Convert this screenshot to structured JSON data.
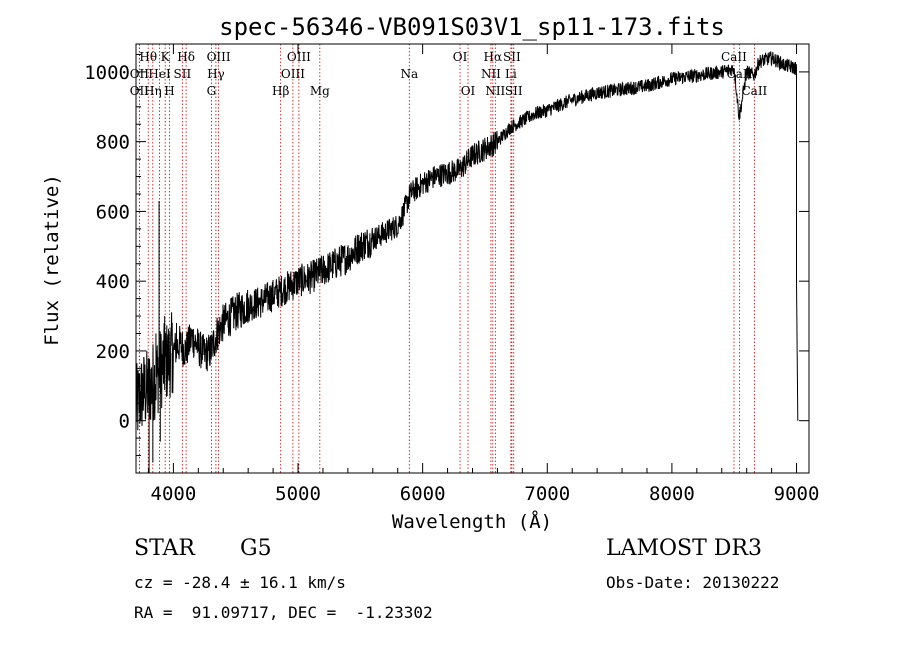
{
  "chart_data": {
    "type": "line",
    "title": "spec-56346-VB091S03V1_sp11-173.fits",
    "xlabel": "Wavelength (Å)",
    "ylabel": "Flux (relative)",
    "xlim": [
      3700,
      9100
    ],
    "ylim": [
      -150,
      1080
    ],
    "x_ticks": [
      4000,
      5000,
      6000,
      7000,
      8000,
      9000
    ],
    "y_ticks": [
      0,
      200,
      400,
      600,
      800,
      1000
    ],
    "spectrum": {
      "name": "flux",
      "x": [
        3700,
        3750,
        3800,
        3850,
        3900,
        3950,
        4000,
        4050,
        4100,
        4150,
        4200,
        4250,
        4300,
        4350,
        4400,
        4500,
        4600,
        4700,
        4800,
        4900,
        5000,
        5100,
        5200,
        5300,
        5400,
        5500,
        5600,
        5700,
        5800,
        5850,
        5900,
        6000,
        6100,
        6200,
        6300,
        6400,
        6500,
        6600,
        6700,
        6800,
        6900,
        7000,
        7200,
        7400,
        7600,
        7800,
        8000,
        8200,
        8400,
        8500,
        8540,
        8600,
        8660,
        8700,
        8800,
        8900,
        9000,
        9010
      ],
      "y": [
        40,
        80,
        90,
        120,
        150,
        170,
        200,
        220,
        200,
        240,
        210,
        190,
        200,
        250,
        280,
        310,
        330,
        340,
        360,
        380,
        400,
        410,
        430,
        450,
        470,
        500,
        520,
        540,
        560,
        600,
        650,
        680,
        700,
        710,
        720,
        760,
        780,
        800,
        840,
        860,
        880,
        890,
        920,
        940,
        950,
        960,
        980,
        990,
        1000,
        1010,
        870,
        1000,
        990,
        1030,
        1040,
        1020,
        1010,
        0
      ],
      "spikes": [
        {
          "x": 3805,
          "y": -150
        },
        {
          "x": 3835,
          "y": -120
        },
        {
          "x": 3860,
          "y": 250
        },
        {
          "x": 3885,
          "y": 630
        },
        {
          "x": 3895,
          "y": -60
        },
        {
          "x": 3930,
          "y": 300
        },
        {
          "x": 3990,
          "y": 80
        },
        {
          "x": 4025,
          "y": 280
        }
      ]
    },
    "lines": [
      {
        "label": "Hθ",
        "x": 3798,
        "row": 0
      },
      {
        "label": "OII",
        "x": 3727,
        "row": 1
      },
      {
        "label": "OII",
        "x": 3727,
        "row": 2
      },
      {
        "label": "HeI",
        "x": 3889,
        "row": 1
      },
      {
        "label": "Hη",
        "x": 3835,
        "row": 2
      },
      {
        "label": "K",
        "x": 3934,
        "row": 0
      },
      {
        "label": "SII",
        "x": 4072,
        "row": 1
      },
      {
        "label": "H",
        "x": 3969,
        "row": 2
      },
      {
        "label": "Hδ",
        "x": 4102,
        "row": 0
      },
      {
        "label": "OIII",
        "x": 4363,
        "row": 0
      },
      {
        "label": "Hγ",
        "x": 4341,
        "row": 1
      },
      {
        "label": "G",
        "x": 4305,
        "row": 2
      },
      {
        "label": "OIII",
        "x": 5007,
        "row": 0
      },
      {
        "label": "OIII",
        "x": 4959,
        "row": 1
      },
      {
        "label": "Hβ",
        "x": 4861,
        "row": 2
      },
      {
        "label": "Mg",
        "x": 5175,
        "row": 2
      },
      {
        "label": "Na",
        "x": 5893,
        "row": 1
      },
      {
        "label": "OI",
        "x": 6300,
        "row": 0
      },
      {
        "label": "OI",
        "x": 6364,
        "row": 2
      },
      {
        "label": "Hα",
        "x": 6563,
        "row": 0
      },
      {
        "label": "SII",
        "x": 6716,
        "row": 0
      },
      {
        "label": "NII",
        "x": 6548,
        "row": 1
      },
      {
        "label": "Li",
        "x": 6708,
        "row": 1
      },
      {
        "label": "NII",
        "x": 6583,
        "row": 2
      },
      {
        "label": "SII",
        "x": 6731,
        "row": 2
      },
      {
        "label": "CaII",
        "x": 8498,
        "row": 0
      },
      {
        "label": "CaII",
        "x": 8542,
        "row": 1
      },
      {
        "label": "CaII",
        "x": 8662,
        "row": 2
      }
    ]
  },
  "info": {
    "class": "STAR",
    "subclass": "G5",
    "cz": "cz = -28.4 ± 16.1 km/s",
    "radec": "RA =  91.09717, DEC =  -1.23302",
    "survey": "LAMOST DR3",
    "obs_date": "Obs-Date: 20130222"
  }
}
